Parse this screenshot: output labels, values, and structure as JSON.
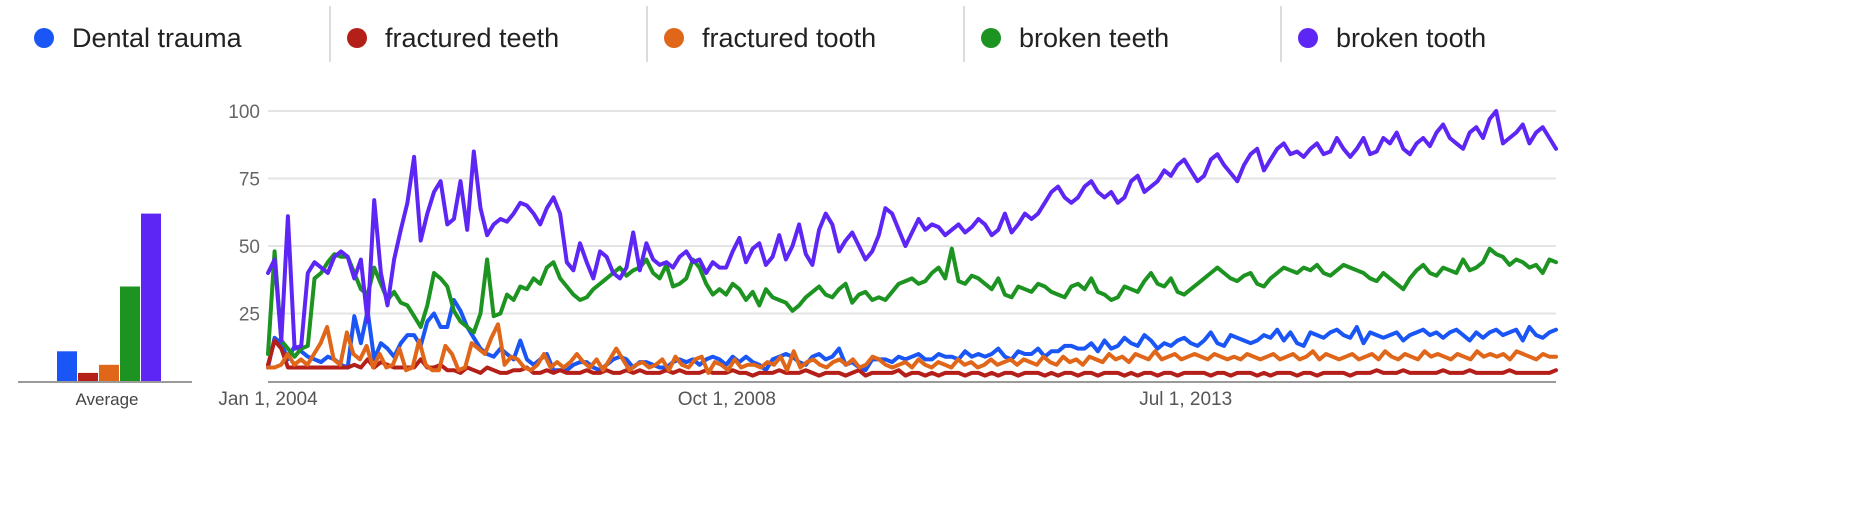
{
  "legend": {
    "items": [
      {
        "label": "Dental trauma",
        "color": "#1a56f5"
      },
      {
        "label": "fractured teeth",
        "color": "#b51f1a"
      },
      {
        "label": "fractured tooth",
        "color": "#e0661a"
      },
      {
        "label": "broken teeth",
        "color": "#1d9322"
      },
      {
        "label": "broken tooth",
        "color": "#5d26f5"
      }
    ]
  },
  "chart_data": [
    {
      "type": "bar",
      "xlabel": "Average",
      "categories": [
        "Dental trauma",
        "fractured teeth",
        "fractured tooth",
        "broken teeth",
        "broken tooth"
      ],
      "values": [
        11,
        3,
        6,
        35,
        62
      ],
      "colors": [
        "#1a56f5",
        "#b51f1a",
        "#e0661a",
        "#1d9322",
        "#5d26f5"
      ],
      "ylim": [
        0,
        100
      ],
      "grid": false
    },
    {
      "type": "line",
      "x_start": "2004-01",
      "x_end": "2017-05",
      "x_interval": "month",
      "x_ticks": [
        "Jan 1, 2004",
        "Oct 1, 2008",
        "Jul 1, 2013"
      ],
      "y_ticks": [
        25,
        50,
        75,
        100
      ],
      "ylim": [
        0,
        100
      ],
      "grid": true,
      "series": [
        {
          "name": "Dental trauma",
          "color": "#1a56f5",
          "values": [
            5,
            16,
            14,
            8,
            13,
            11,
            9,
            8,
            7,
            9,
            8,
            6,
            5,
            24,
            14,
            26,
            8,
            14,
            12,
            9,
            14,
            17,
            17,
            13,
            22,
            25,
            20,
            20,
            30,
            26,
            20,
            16,
            12,
            10,
            9,
            12,
            10,
            8,
            15,
            8,
            6,
            8,
            10,
            4,
            4,
            4,
            6,
            7,
            7,
            5,
            4,
            6,
            8,
            9,
            8,
            5,
            7,
            7,
            6,
            5,
            5,
            7,
            8,
            7,
            8,
            6,
            8,
            9,
            8,
            6,
            9,
            7,
            9,
            7,
            6,
            4,
            8,
            9,
            10,
            9,
            7,
            6,
            9,
            10,
            8,
            9,
            12,
            6,
            7,
            5,
            4,
            8,
            8,
            8,
            7,
            9,
            8,
            9,
            10,
            8,
            8,
            10,
            9,
            9,
            8,
            11,
            9,
            10,
            9,
            10,
            12,
            9,
            8,
            11,
            10,
            10,
            12,
            9,
            11,
            11,
            13,
            13,
            12,
            12,
            14,
            11,
            15,
            12,
            13,
            16,
            14,
            13,
            17,
            15,
            12,
            14,
            13,
            15,
            16,
            14,
            13,
            15,
            18,
            14,
            13,
            17,
            16,
            15,
            14,
            15,
            17,
            16,
            19,
            15,
            18,
            14,
            13,
            18,
            17,
            16,
            18,
            19,
            17,
            16,
            20,
            14,
            18,
            17,
            16,
            17,
            18,
            15,
            17,
            18,
            19,
            17,
            18,
            16,
            18,
            19,
            17,
            15,
            18,
            16,
            18,
            19,
            17,
            18,
            19,
            15,
            20,
            17,
            16,
            18,
            19
          ]
        },
        {
          "name": "fractured teeth",
          "color": "#b51f1a",
          "values": [
            6,
            15,
            12,
            5,
            5,
            5,
            5,
            5,
            5,
            5,
            5,
            5,
            5,
            6,
            5,
            8,
            5,
            7,
            6,
            5,
            5,
            5,
            5,
            8,
            5,
            5,
            6,
            4,
            4,
            3,
            5,
            4,
            3,
            5,
            4,
            3,
            3,
            4,
            4,
            5,
            3,
            3,
            4,
            3,
            4,
            3,
            3,
            3,
            4,
            3,
            3,
            4,
            3,
            3,
            4,
            3,
            4,
            3,
            3,
            3,
            4,
            3,
            4,
            3,
            3,
            3,
            4,
            3,
            3,
            3,
            4,
            3,
            3,
            2,
            3,
            3,
            3,
            4,
            3,
            3,
            3,
            4,
            3,
            2,
            3,
            3,
            3,
            2,
            3,
            4,
            2,
            3,
            3,
            3,
            3,
            4,
            2,
            3,
            3,
            2,
            3,
            2,
            3,
            3,
            3,
            2,
            3,
            3,
            2,
            3,
            2,
            3,
            3,
            2,
            3,
            3,
            3,
            2,
            3,
            2,
            3,
            3,
            2,
            3,
            3,
            2,
            3,
            3,
            3,
            2,
            3,
            2,
            3,
            3,
            2,
            3,
            3,
            2,
            3,
            3,
            3,
            3,
            2,
            3,
            3,
            2,
            3,
            3,
            3,
            2,
            3,
            2,
            3,
            3,
            3,
            2,
            3,
            3,
            2,
            3,
            3,
            3,
            3,
            2,
            3,
            3,
            3,
            4,
            3,
            3,
            3,
            4,
            3,
            3,
            3,
            3,
            3,
            4,
            3,
            3,
            3,
            4,
            3,
            3,
            3,
            3,
            3,
            4,
            3,
            3,
            3,
            3,
            3,
            3,
            4
          ]
        },
        {
          "name": "fractured tooth",
          "color": "#e0661a",
          "values": [
            5,
            5,
            6,
            10,
            6,
            8,
            6,
            10,
            14,
            20,
            8,
            6,
            18,
            10,
            8,
            13,
            5,
            10,
            5,
            6,
            12,
            4,
            5,
            15,
            6,
            4,
            4,
            13,
            10,
            4,
            5,
            14,
            12,
            10,
            16,
            21,
            6,
            9,
            8,
            5,
            4,
            6,
            10,
            5,
            7,
            5,
            7,
            10,
            7,
            5,
            8,
            4,
            8,
            12,
            8,
            4,
            6,
            7,
            5,
            6,
            8,
            4,
            9,
            6,
            5,
            8,
            9,
            3,
            7,
            6,
            4,
            8,
            5,
            6,
            6,
            5,
            7,
            6,
            9,
            4,
            11,
            5,
            7,
            8,
            6,
            5,
            7,
            8,
            6,
            8,
            5,
            6,
            9,
            8,
            6,
            5,
            6,
            7,
            5,
            8,
            6,
            5,
            7,
            6,
            5,
            8,
            6,
            7,
            5,
            6,
            8,
            6,
            7,
            8,
            6,
            8,
            7,
            6,
            9,
            7,
            6,
            9,
            7,
            8,
            6,
            9,
            8,
            7,
            10,
            8,
            9,
            7,
            10,
            9,
            8,
            11,
            8,
            9,
            10,
            8,
            9,
            10,
            9,
            8,
            10,
            9,
            8,
            9,
            8,
            10,
            9,
            8,
            9,
            10,
            8,
            9,
            10,
            8,
            9,
            11,
            8,
            10,
            9,
            8,
            9,
            10,
            8,
            9,
            10,
            8,
            11,
            9,
            8,
            10,
            9,
            8,
            11,
            9,
            10,
            9,
            8,
            10,
            9,
            8,
            11,
            9,
            10,
            9,
            10,
            8,
            11,
            10,
            9,
            8,
            10,
            9,
            9
          ]
        },
        {
          "name": "broken teeth",
          "color": "#1d9322",
          "values": [
            10,
            48,
            15,
            12,
            9,
            12,
            13,
            38,
            40,
            44,
            47,
            46,
            46,
            40,
            34,
            32,
            42,
            36,
            30,
            33,
            29,
            28,
            24,
            20,
            28,
            40,
            38,
            35,
            26,
            22,
            20,
            18,
            25,
            45,
            24,
            25,
            32,
            30,
            35,
            34,
            38,
            36,
            42,
            44,
            38,
            35,
            32,
            30,
            31,
            34,
            36,
            38,
            40,
            42,
            39,
            41,
            42,
            45,
            40,
            38,
            43,
            35,
            36,
            38,
            45,
            42,
            36,
            32,
            34,
            32,
            36,
            34,
            30,
            33,
            28,
            34,
            31,
            30,
            29,
            26,
            28,
            31,
            33,
            35,
            32,
            31,
            34,
            36,
            29,
            32,
            33,
            30,
            31,
            30,
            33,
            36,
            37,
            38,
            36,
            37,
            40,
            42,
            38,
            49,
            37,
            36,
            39,
            38,
            36,
            34,
            38,
            32,
            31,
            35,
            34,
            33,
            36,
            35,
            33,
            32,
            31,
            35,
            36,
            34,
            38,
            33,
            32,
            30,
            31,
            35,
            34,
            33,
            37,
            40,
            36,
            35,
            38,
            33,
            32,
            34,
            36,
            38,
            40,
            42,
            40,
            38,
            37,
            39,
            40,
            36,
            35,
            38,
            40,
            42,
            41,
            40,
            42,
            41,
            43,
            40,
            39,
            41,
            43,
            42,
            41,
            40,
            38,
            37,
            40,
            38,
            36,
            34,
            38,
            41,
            43,
            40,
            39,
            42,
            41,
            40,
            45,
            41,
            42,
            44,
            49,
            47,
            46,
            43,
            45,
            44,
            42,
            43,
            40,
            45,
            44
          ]
        },
        {
          "name": "broken tooth",
          "color": "#5d26f5",
          "values": [
            40,
            45,
            15,
            61,
            12,
            13,
            40,
            44,
            42,
            40,
            46,
            48,
            46,
            38,
            45,
            22,
            67,
            40,
            28,
            45,
            56,
            66,
            83,
            52,
            62,
            70,
            74,
            58,
            60,
            74,
            56,
            85,
            64,
            54,
            58,
            60,
            59,
            62,
            66,
            65,
            62,
            58,
            64,
            68,
            62,
            44,
            41,
            51,
            44,
            38,
            48,
            46,
            40,
            38,
            42,
            55,
            41,
            51,
            45,
            43,
            44,
            42,
            46,
            48,
            44,
            45,
            40,
            44,
            42,
            42,
            48,
            53,
            44,
            49,
            51,
            43,
            46,
            54,
            45,
            50,
            58,
            47,
            43,
            56,
            62,
            58,
            48,
            52,
            55,
            50,
            45,
            48,
            54,
            64,
            62,
            56,
            50,
            55,
            60,
            56,
            58,
            57,
            54,
            56,
            58,
            55,
            57,
            60,
            58,
            54,
            56,
            62,
            55,
            58,
            62,
            60,
            62,
            66,
            70,
            72,
            68,
            66,
            68,
            72,
            74,
            70,
            68,
            70,
            66,
            68,
            74,
            76,
            70,
            72,
            74,
            78,
            76,
            80,
            82,
            78,
            74,
            76,
            82,
            84,
            80,
            77,
            74,
            80,
            84,
            86,
            78,
            82,
            86,
            88,
            84,
            85,
            83,
            86,
            88,
            84,
            85,
            90,
            86,
            83,
            86,
            90,
            84,
            85,
            90,
            88,
            92,
            86,
            84,
            88,
            90,
            87,
            92,
            95,
            90,
            88,
            86,
            92,
            94,
            90,
            97,
            100,
            88,
            90,
            92,
            95,
            88,
            92,
            94,
            90,
            86
          ]
        }
      ]
    }
  ]
}
